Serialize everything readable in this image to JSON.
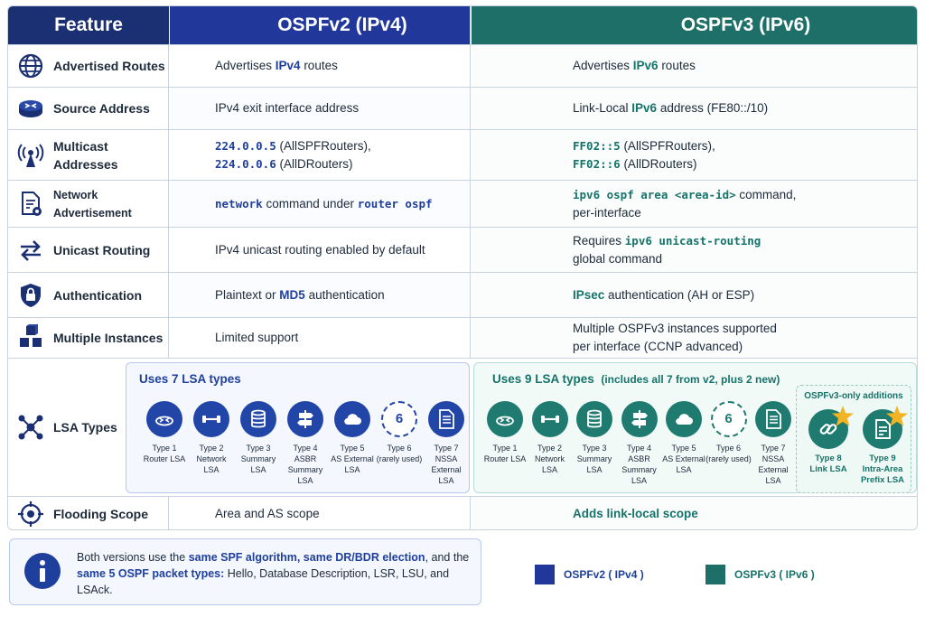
{
  "header": {
    "feature": "Feature",
    "v2": "OSPFv2 (IPv4)",
    "v3": "OSPFv3 (IPv6)"
  },
  "rows": {
    "advertised": {
      "label": "Advertised Routes",
      "icon": "globe-icon",
      "v2_pre": "Advertises ",
      "v2_hl": "IPv4",
      "v2_post": " routes",
      "v3_pre": "Advertises ",
      "v3_hl": "IPv6",
      "v3_post": " routes"
    },
    "source": {
      "label": "Source Address",
      "icon": "router-icon",
      "v2": "IPv4 exit interface address",
      "v3_pre": "Link-Local ",
      "v3_hl": "IPv6",
      "v3_post": " address (FE80::/10)"
    },
    "multicast": {
      "label": "Multicast Addresses",
      "icon": "antenna-icon",
      "v2_a_code": "224.0.0.5",
      "v2_a_text": " (AllSPFRouters),",
      "v2_b_code": "224.0.0.6",
      "v2_b_text": " (AllDRouters)",
      "v3_a_code": "FF02::5",
      "v3_a_text": " (AllSPFRouters),",
      "v3_b_code": "FF02::6",
      "v3_b_text": " (AllDRouters)"
    },
    "network": {
      "label": "Network Advertisement",
      "icon": "document-gear-icon",
      "v2_code1": "network",
      "v2_mid": " command under ",
      "v2_code2": "router ospf",
      "v3_code": "ipv6 ospf area <area-id>",
      "v3_post": " command,",
      "v3_line2": "per-interface"
    },
    "unicast": {
      "label": "Unicast Routing",
      "icon": "arrows-icon",
      "v2": "IPv4 unicast routing enabled by default",
      "v3_pre": "Requires ",
      "v3_code": "ipv6 unicast-routing",
      "v3_line2": "global command"
    },
    "auth": {
      "label": "Authentication",
      "icon": "shield-lock-icon",
      "v2_pre": "Plaintext or ",
      "v2_hl": "MD5",
      "v2_post": " authentication",
      "v3_hl": "IPsec",
      "v3_post": " authentication (AH or ESP)"
    },
    "instances": {
      "label": "Multiple Instances",
      "icon": "cubes-icon",
      "v2": "Limited support",
      "v3_line1": "Multiple OSPFv3 instances supported",
      "v3_line2": "per interface (CCNP advanced)"
    },
    "lsa": {
      "label": "LSA Types",
      "icon": "network-nodes-icon",
      "v2_title": "Uses 7 LSA types",
      "v3_title": "Uses 9 LSA types",
      "v3_note": "(includes all 7 from v2, plus 2 new)",
      "types": [
        {
          "t": "Type 1",
          "d": "Router LSA",
          "icon": "router-icon"
        },
        {
          "t": "Type 2",
          "d": "Network LSA",
          "icon": "network-link-icon"
        },
        {
          "t": "Type 3",
          "d": "Summary LSA",
          "icon": "database-icon"
        },
        {
          "t": "Type 4",
          "d": "ASBR Summary LSA",
          "icon": "signpost-icon"
        },
        {
          "t": "Type 5",
          "d": "AS External LSA",
          "icon": "cloud-icon"
        },
        {
          "t": "Type 6",
          "d": "(rarely used)",
          "icon": "number-six-icon",
          "num": "6"
        },
        {
          "t": "Type 7",
          "d": "NSSA External LSA",
          "icon": "list-document-icon"
        }
      ],
      "additions_title": "OSPFv3-only additions",
      "additions": [
        {
          "t": "Type 8",
          "d": "Link LSA",
          "icon": "chain-link-icon"
        },
        {
          "t": "Type 9",
          "d": "Intra-Area Prefix LSA",
          "icon": "document-icon"
        }
      ]
    },
    "flooding": {
      "label": "Flooding Scope",
      "icon": "target-icon",
      "v2": "Area and AS scope",
      "v3": "Adds link-local scope"
    }
  },
  "info": {
    "p1": "Both versions use the ",
    "b1": "same SPF algorithm, same DR/BDR election",
    "p2": ", and the ",
    "b2": "same 5 OSPF packet types:",
    "p3": " Hello, Database Description, LSR, LSU, and LSAck."
  },
  "legend": {
    "v2": "OSPFv2 ( IPv4 )",
    "v3": "OSPFv3 ( IPv6 )",
    "v2_color": "#21389a",
    "v3_color": "#1d6f68"
  }
}
